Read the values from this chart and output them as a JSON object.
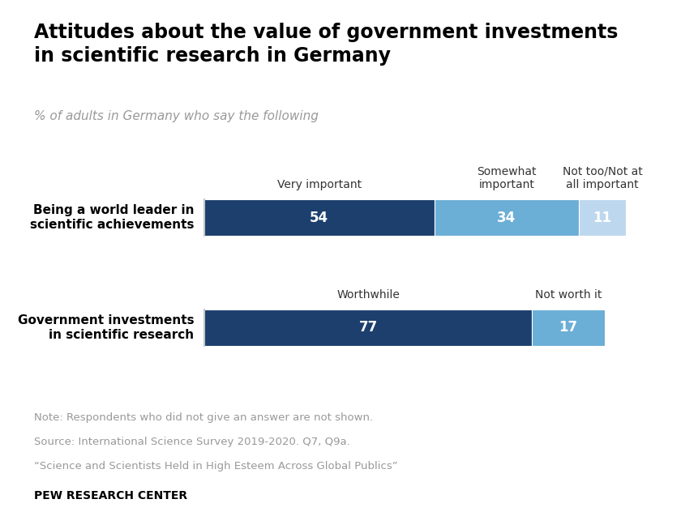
{
  "title": "Attitudes about the value of government investments\nin scientific research in Germany",
  "subtitle": "% of adults in Germany who say the following",
  "background_color": "#ffffff",
  "rows": [
    {
      "label": "Being a world leader in\nscientific achievements",
      "segments": [
        54,
        34,
        11
      ],
      "colors": [
        "#1c3f6e",
        "#6baed6",
        "#bdd7ee"
      ],
      "col_headers": [
        "Very important",
        "Somewhat\nimportant",
        "Not too/Not at\nall important"
      ]
    },
    {
      "label": "Government investments\nin scientific research",
      "segments": [
        77,
        17
      ],
      "colors": [
        "#1c3f6e",
        "#6baed6"
      ],
      "col_headers": [
        "Worthwhile",
        "Not worth it"
      ]
    }
  ],
  "note_lines": [
    "Note: Respondents who did not give an answer are not shown.",
    "Source: International Science Survey 2019-2020. Q7, Q9a.",
    "“Science and Scientists Held in High Esteem Across Global Publics”"
  ],
  "source_label": "PEW RESEARCH CENTER",
  "title_fontsize": 17,
  "subtitle_fontsize": 11,
  "header_fontsize": 10,
  "bar_label_fontsize": 12,
  "row_label_fontsize": 11,
  "note_fontsize": 9.5,
  "source_fontsize": 10
}
